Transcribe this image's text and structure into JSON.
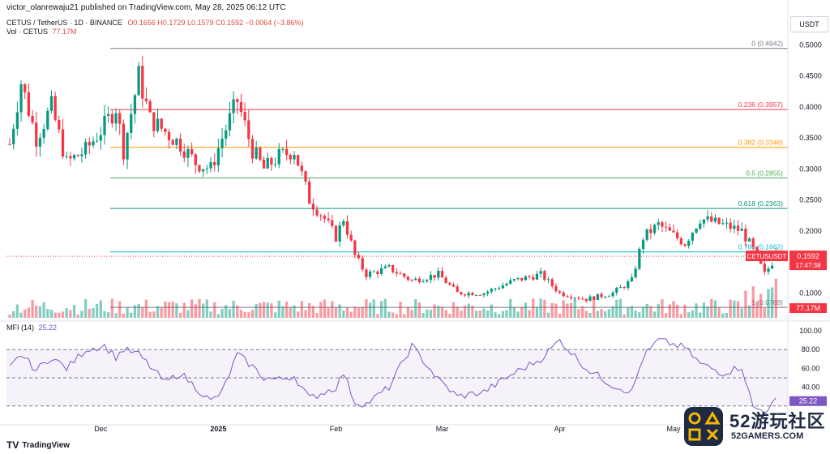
{
  "header": {
    "publisher": "victor_olanrewaju21 published on TradingView.com, May 28, 2025 06:12 UTC"
  },
  "symbol": {
    "name": "CETUS / TetherUS · 1D · BINANCE",
    "ohlc": "O0.1656  H0.1729  L0.1579  C0.1592  −0.0064 (−3.86%)",
    "volume_label": "Vol · CETUS",
    "volume_value": "77.17M"
  },
  "quote_currency": "USDT",
  "price_scale": {
    "ticks": [
      "0.5000",
      "0.4500",
      "0.4000",
      "0.3500",
      "0.3000",
      "0.2500",
      "0.2000",
      "0.1500",
      "0.1000"
    ]
  },
  "fib_levels": [
    {
      "label": "0 (0.4942)",
      "price": 0.4942,
      "color": "#787b86"
    },
    {
      "label": "0.236 (0.3957)",
      "price": 0.3957,
      "color": "#f23645"
    },
    {
      "label": "0.382 (0.3348)",
      "price": 0.3348,
      "color": "#ff9800"
    },
    {
      "label": "0.5 (0.2855)",
      "price": 0.2855,
      "color": "#4caf50"
    },
    {
      "label": "0.618 (0.2363)",
      "price": 0.2363,
      "color": "#089981"
    },
    {
      "label": "0.786 (0.1662)",
      "price": 0.1662,
      "color": "#00bcd4"
    },
    {
      "label": "1 (0.0769)",
      "price": 0.0769,
      "color": "#787b86"
    }
  ],
  "price_tag": {
    "symbol": "CETUSUSDT",
    "price": "0.1592",
    "countdown": "17:47:38",
    "color": "#f23645"
  },
  "volume_tag": {
    "value": "77.17M",
    "color": "#f23645"
  },
  "mfi": {
    "title": "MFI (14)",
    "value": "25.22",
    "ticks": [
      "100.00",
      "80.00",
      "60.00",
      "40.00"
    ],
    "value_tag": "25.22",
    "upper_band": 80,
    "lower_band": 20,
    "middle": 50,
    "color": "#7e57c2"
  },
  "time_axis": {
    "labels": [
      "Dec",
      "2025",
      "Feb",
      "Mar",
      "Apr",
      "May"
    ]
  },
  "brand": {
    "mark": "TV",
    "name": "TradingView"
  },
  "watermark": {
    "title": "52游玩社区",
    "subtitle": "52GAMERS.COM"
  },
  "colors": {
    "up": "#089981",
    "down": "#f23645",
    "mfi": "#7e57c2"
  },
  "chart_data": {
    "type": "candlestick",
    "title": "CETUS / TetherUS · 1D · BINANCE",
    "ylim": [
      0.06,
      0.52
    ],
    "y_scale": "linear",
    "mfi_ylim": [
      0,
      100
    ],
    "months": [
      {
        "label": "Dec",
        "date": "2024-12-01"
      },
      {
        "label": "2025",
        "date": "2025-01-01"
      },
      {
        "label": "Feb",
        "date": "2025-02-01"
      },
      {
        "label": "Mar",
        "date": "2025-03-01"
      },
      {
        "label": "Apr",
        "date": "2025-04-01"
      },
      {
        "label": "May",
        "date": "2025-05-01"
      }
    ],
    "first_date": "2024-11-07",
    "close_anchors": [
      {
        "date": "2024-11-07",
        "close": 0.34
      },
      {
        "date": "2024-11-10",
        "close": 0.44
      },
      {
        "date": "2024-11-14",
        "close": 0.35
      },
      {
        "date": "2024-11-18",
        "close": 0.4
      },
      {
        "date": "2024-11-22",
        "close": 0.31
      },
      {
        "date": "2024-11-27",
        "close": 0.33
      },
      {
        "date": "2024-12-02",
        "close": 0.37
      },
      {
        "date": "2024-12-05",
        "close": 0.4
      },
      {
        "date": "2024-12-07",
        "close": 0.33
      },
      {
        "date": "2024-12-11",
        "close": 0.45
      },
      {
        "date": "2024-12-14",
        "close": 0.38
      },
      {
        "date": "2024-12-18",
        "close": 0.36
      },
      {
        "date": "2024-12-22",
        "close": 0.34
      },
      {
        "date": "2024-12-26",
        "close": 0.31
      },
      {
        "date": "2024-12-30",
        "close": 0.3
      },
      {
        "date": "2025-01-02",
        "close": 0.35
      },
      {
        "date": "2025-01-06",
        "close": 0.41
      },
      {
        "date": "2025-01-10",
        "close": 0.33
      },
      {
        "date": "2025-01-13",
        "close": 0.3
      },
      {
        "date": "2025-01-17",
        "close": 0.32
      },
      {
        "date": "2025-01-21",
        "close": 0.33
      },
      {
        "date": "2025-01-25",
        "close": 0.25
      },
      {
        "date": "2025-01-29",
        "close": 0.22
      },
      {
        "date": "2025-02-01",
        "close": 0.19
      },
      {
        "date": "2025-02-03",
        "close": 0.22
      },
      {
        "date": "2025-02-06",
        "close": 0.16
      },
      {
        "date": "2025-02-09",
        "close": 0.13
      },
      {
        "date": "2025-02-15",
        "close": 0.14
      },
      {
        "date": "2025-02-21",
        "close": 0.12
      },
      {
        "date": "2025-02-28",
        "close": 0.13
      },
      {
        "date": "2025-03-05",
        "close": 0.1
      },
      {
        "date": "2025-03-12",
        "close": 0.1
      },
      {
        "date": "2025-03-20",
        "close": 0.12
      },
      {
        "date": "2025-03-27",
        "close": 0.13
      },
      {
        "date": "2025-04-01",
        "close": 0.1
      },
      {
        "date": "2025-04-08",
        "close": 0.09
      },
      {
        "date": "2025-04-15",
        "close": 0.1
      },
      {
        "date": "2025-04-20",
        "close": 0.12
      },
      {
        "date": "2025-04-23",
        "close": 0.19
      },
      {
        "date": "2025-04-27",
        "close": 0.21
      },
      {
        "date": "2025-05-04",
        "close": 0.18
      },
      {
        "date": "2025-05-08",
        "close": 0.22
      },
      {
        "date": "2025-05-14",
        "close": 0.21
      },
      {
        "date": "2025-05-19",
        "close": 0.2
      },
      {
        "date": "2025-05-22",
        "close": 0.17
      },
      {
        "date": "2025-05-25",
        "close": 0.13
      },
      {
        "date": "2025-05-28",
        "close": 0.1592
      }
    ],
    "volume_label": "77.17M",
    "mfi_anchors": [
      {
        "date": "2024-11-07",
        "value": 60
      },
      {
        "date": "2024-11-10",
        "value": 75
      },
      {
        "date": "2024-11-14",
        "value": 58
      },
      {
        "date": "2024-11-18",
        "value": 72
      },
      {
        "date": "2024-11-22",
        "value": 60
      },
      {
        "date": "2024-11-27",
        "value": 80
      },
      {
        "date": "2024-12-02",
        "value": 84
      },
      {
        "date": "2024-12-05",
        "value": 72
      },
      {
        "date": "2024-12-07",
        "value": 80
      },
      {
        "date": "2024-12-11",
        "value": 75
      },
      {
        "date": "2024-12-14",
        "value": 62
      },
      {
        "date": "2024-12-18",
        "value": 45
      },
      {
        "date": "2024-12-22",
        "value": 55
      },
      {
        "date": "2024-12-26",
        "value": 40
      },
      {
        "date": "2024-12-30",
        "value": 25
      },
      {
        "date": "2025-01-02",
        "value": 35
      },
      {
        "date": "2025-01-06",
        "value": 75
      },
      {
        "date": "2025-01-10",
        "value": 62
      },
      {
        "date": "2025-01-13",
        "value": 50
      },
      {
        "date": "2025-01-17",
        "value": 48
      },
      {
        "date": "2025-01-21",
        "value": 52
      },
      {
        "date": "2025-01-25",
        "value": 28
      },
      {
        "date": "2025-01-29",
        "value": 35
      },
      {
        "date": "2025-02-01",
        "value": 40
      },
      {
        "date": "2025-02-03",
        "value": 55
      },
      {
        "date": "2025-02-06",
        "value": 24
      },
      {
        "date": "2025-02-09",
        "value": 22
      },
      {
        "date": "2025-02-15",
        "value": 40
      },
      {
        "date": "2025-02-21",
        "value": 84
      },
      {
        "date": "2025-02-28",
        "value": 48
      },
      {
        "date": "2025-03-05",
        "value": 30
      },
      {
        "date": "2025-03-12",
        "value": 35
      },
      {
        "date": "2025-03-20",
        "value": 55
      },
      {
        "date": "2025-03-27",
        "value": 70
      },
      {
        "date": "2025-04-01",
        "value": 90
      },
      {
        "date": "2025-04-08",
        "value": 60
      },
      {
        "date": "2025-04-15",
        "value": 42
      },
      {
        "date": "2025-04-20",
        "value": 35
      },
      {
        "date": "2025-04-23",
        "value": 72
      },
      {
        "date": "2025-04-27",
        "value": 90
      },
      {
        "date": "2025-05-04",
        "value": 82
      },
      {
        "date": "2025-05-08",
        "value": 65
      },
      {
        "date": "2025-05-14",
        "value": 55
      },
      {
        "date": "2025-05-19",
        "value": 62
      },
      {
        "date": "2025-05-22",
        "value": 18
      },
      {
        "date": "2025-05-25",
        "value": 15
      },
      {
        "date": "2025-05-28",
        "value": 25.22
      }
    ]
  }
}
